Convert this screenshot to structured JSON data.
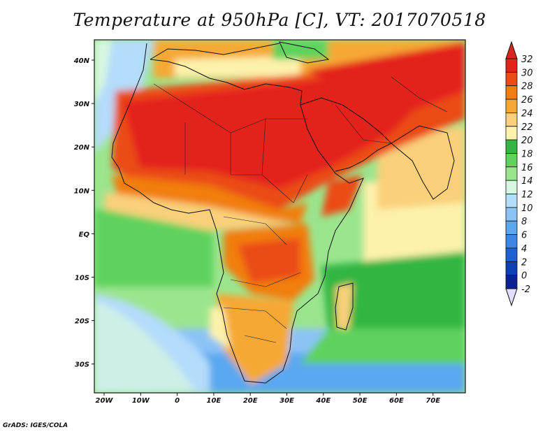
{
  "title": "Temperature at 950hPa [C], VT: 2017070518",
  "credit": "GrADS: IGES/COLA",
  "map": {
    "lon_labels": [
      "20W",
      "10W",
      "0",
      "10E",
      "20E",
      "30E",
      "40E",
      "50E",
      "60E",
      "70E"
    ],
    "lat_labels": [
      "40N",
      "30N",
      "20N",
      "10N",
      "EQ",
      "10S",
      "20S",
      "30S"
    ]
  },
  "colorbar": {
    "levels": [
      "32",
      "30",
      "28",
      "26",
      "24",
      "22",
      "20",
      "18",
      "16",
      "14",
      "12",
      "10",
      "8",
      "6",
      "4",
      "2",
      "0",
      "-2"
    ],
    "colors": [
      "#e3231a",
      "#eb4b16",
      "#f17e10",
      "#f6a834",
      "#fad07a",
      "#fdf2ab",
      "#33b643",
      "#5ed25d",
      "#9be58e",
      "#d7f8e0",
      "#b4dcfb",
      "#8bc3f6",
      "#5aa8ef",
      "#3a87e5",
      "#2162d2",
      "#0e42b4",
      "#0a2390"
    ],
    "top_cap_color": "#d7271c",
    "bottom_cap_color": "#e3defc"
  }
}
